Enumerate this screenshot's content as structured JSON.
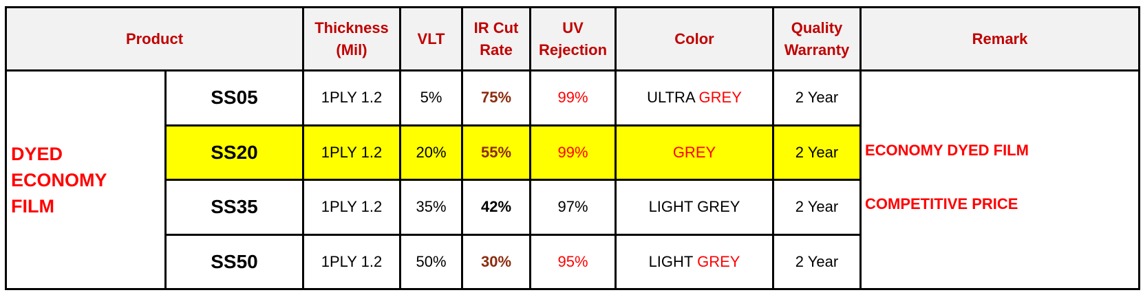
{
  "colors": {
    "header_text": "#c00000",
    "header_bg": "#f2f2f2",
    "highlight_bg": "#ffff00",
    "accent_red": "#ff0000",
    "ir_brown": "#8b2b0d",
    "border": "#000000"
  },
  "header": {
    "product": "Product",
    "thickness_1": "Thickness",
    "thickness_2": "(Mil)",
    "vlt": "VLT",
    "ir_1": "IR Cut",
    "ir_2": "Rate",
    "uv_1": "UV",
    "uv_2": "Rejection",
    "color": "Color",
    "warranty_1": "Quality",
    "warranty_2": "Warranty",
    "remark": "Remark"
  },
  "group": {
    "line1": "DYED",
    "line2": "ECONOMY",
    "line3": "FILM"
  },
  "remarks": {
    "line1": "ECONOMY DYED FILM",
    "line2": "COMPETITIVE PRICE"
  },
  "rows": [
    {
      "product": "SS05",
      "thickness": "1PLY 1.2",
      "vlt": "5%",
      "ir": "75%",
      "uv": "99%",
      "color_a": "ULTRA ",
      "color_b": "GREY",
      "warranty": "2 Year"
    },
    {
      "product": "SS20",
      "thickness": "1PLY 1.2",
      "vlt": "20%",
      "ir": "55%",
      "uv": "99%",
      "color_a": "",
      "color_b": "GREY",
      "warranty": "2 Year"
    },
    {
      "product": "SS35",
      "thickness": "1PLY 1.2",
      "vlt": "35%",
      "ir": "42%",
      "uv": "97%",
      "color_a": "LIGHT GREY",
      "color_b": "",
      "warranty": "2 Year"
    },
    {
      "product": "SS50",
      "thickness": "1PLY 1.2",
      "vlt": "50%",
      "ir": "30%",
      "uv": "95%",
      "color_a": "LIGHT ",
      "color_b": "GREY",
      "warranty": "2 Year"
    }
  ]
}
